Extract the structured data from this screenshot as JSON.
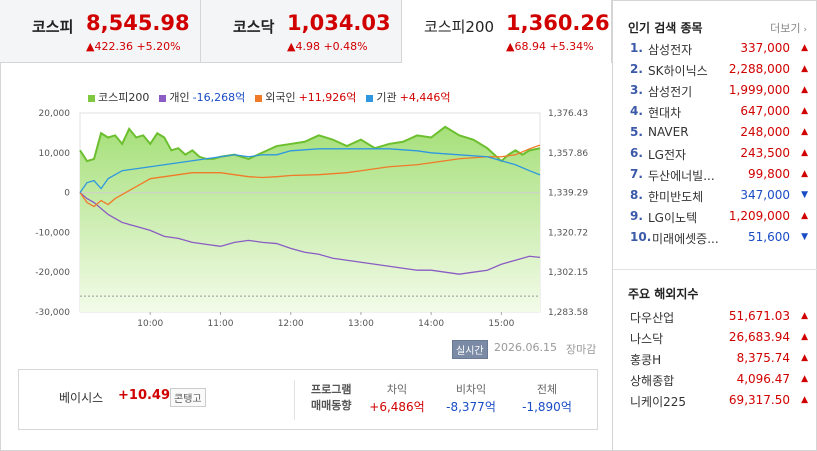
{
  "indices": [
    {
      "name": "코스피",
      "value": "8,545.98",
      "change": "422.36",
      "pct": "+5.20%"
    },
    {
      "name": "코스닥",
      "value": "1,034.03",
      "change": "4.98",
      "pct": "+0.48%"
    },
    {
      "name": "코스피200",
      "value": "1,360.26",
      "change": "68.94",
      "pct": "+5.34%"
    }
  ],
  "legend": [
    {
      "name": "코스피200",
      "value": "",
      "color": "#7fc840"
    },
    {
      "name": "개인",
      "value": "-16,268억",
      "color": "#8a5cc4",
      "vcolor": "#1a4cc6"
    },
    {
      "name": "외국인",
      "value": "+11,926억",
      "color": "#f07a28",
      "vcolor": "#d10000"
    },
    {
      "name": "기관",
      "value": "+4,446억",
      "color": "#2f97e0",
      "vcolor": "#d10000"
    }
  ],
  "chart_data": {
    "type": "line",
    "x_ticks": [
      "10:00",
      "11:00",
      "12:00",
      "13:00",
      "14:00",
      "15:00"
    ],
    "y_left_ticks": [
      "20,000",
      "10,000",
      "0",
      "-10,000",
      "-20,000",
      "-30,000"
    ],
    "y_left_range": [
      -30000,
      20000
    ],
    "y_right_ticks": [
      "1,376.43",
      "1,357.86",
      "1,339.29",
      "1,320.72",
      "1,302.15",
      "1,283.58"
    ],
    "y_right_range": [
      1283.58,
      1376.43
    ],
    "x_range": [
      9.0,
      15.55
    ],
    "series": [
      {
        "name": "코스피200",
        "axis": "right",
        "type": "area",
        "x": [
          9.0,
          9.1,
          9.2,
          9.3,
          9.4,
          9.5,
          9.6,
          9.7,
          9.8,
          9.9,
          10.0,
          10.1,
          10.2,
          10.3,
          10.4,
          10.5,
          10.6,
          10.7,
          10.8,
          10.9,
          11.0,
          11.2,
          11.4,
          11.6,
          11.8,
          12.0,
          12.2,
          12.4,
          12.6,
          12.8,
          13.0,
          13.2,
          13.4,
          13.6,
          13.8,
          14.0,
          14.2,
          14.4,
          14.6,
          14.8,
          15.0,
          15.1,
          15.2,
          15.3,
          15.4,
          15.55
        ],
        "y": [
          1359,
          1354,
          1355,
          1367,
          1365,
          1366,
          1362,
          1369,
          1365,
          1366,
          1362,
          1367,
          1365,
          1359,
          1360,
          1357,
          1359,
          1356,
          1355,
          1355,
          1356,
          1357,
          1355,
          1358,
          1361,
          1362,
          1363,
          1366,
          1364,
          1361,
          1364,
          1360,
          1362,
          1363,
          1366,
          1365,
          1370,
          1366,
          1364,
          1360,
          1354,
          1357,
          1359,
          1357,
          1359,
          1360
        ]
      },
      {
        "name": "개인",
        "axis": "left",
        "x": [
          9.0,
          9.1,
          9.2,
          9.3,
          9.4,
          9.5,
          9.6,
          9.7,
          9.8,
          9.9,
          10.0,
          10.2,
          10.4,
          10.6,
          10.8,
          11.0,
          11.2,
          11.4,
          11.6,
          11.8,
          12.0,
          12.2,
          12.4,
          12.6,
          12.8,
          13.0,
          13.2,
          13.4,
          13.6,
          13.8,
          14.0,
          14.2,
          14.4,
          14.6,
          14.8,
          15.0,
          15.2,
          15.4,
          15.55
        ],
        "y": [
          0,
          -1500,
          -2500,
          -4000,
          -5500,
          -6500,
          -7500,
          -8000,
          -8500,
          -9000,
          -9500,
          -11000,
          -11500,
          -12500,
          -13000,
          -13500,
          -12500,
          -12000,
          -12500,
          -12800,
          -14000,
          -15000,
          -15500,
          -16500,
          -17000,
          -17500,
          -18000,
          -18500,
          -19000,
          -19500,
          -19500,
          -20000,
          -20500,
          -20000,
          -19500,
          -18000,
          -17000,
          -16000,
          -16268
        ]
      },
      {
        "name": "외국인",
        "axis": "left",
        "x": [
          9.0,
          9.1,
          9.2,
          9.3,
          9.4,
          9.5,
          9.7,
          9.9,
          10.0,
          10.2,
          10.4,
          10.6,
          10.8,
          11.0,
          11.2,
          11.4,
          11.6,
          11.8,
          12.0,
          12.4,
          12.8,
          13.0,
          13.4,
          13.8,
          14.0,
          14.4,
          14.8,
          15.0,
          15.2,
          15.4,
          15.55
        ],
        "y": [
          0,
          -2500,
          -3500,
          -2000,
          -3000,
          -1500,
          500,
          2500,
          3500,
          4000,
          4500,
          5000,
          5000,
          5000,
          4500,
          4000,
          3800,
          4000,
          4300,
          4500,
          5000,
          5500,
          6500,
          7000,
          7500,
          8500,
          9000,
          9000,
          9500,
          11000,
          11926
        ]
      },
      {
        "name": "기관",
        "axis": "left",
        "x": [
          9.0,
          9.1,
          9.2,
          9.3,
          9.4,
          9.5,
          9.6,
          9.8,
          10.0,
          10.2,
          10.4,
          10.6,
          10.8,
          11.0,
          11.2,
          11.4,
          11.6,
          11.8,
          12.0,
          12.4,
          12.8,
          13.0,
          13.4,
          13.8,
          14.0,
          14.4,
          14.8,
          15.0,
          15.2,
          15.4,
          15.55
        ],
        "y": [
          0,
          2500,
          3000,
          1000,
          3500,
          4500,
          5500,
          6000,
          6500,
          7000,
          7500,
          8000,
          8500,
          9000,
          9500,
          9000,
          9500,
          9500,
          10500,
          11000,
          11000,
          11000,
          11000,
          10500,
          10000,
          9500,
          9000,
          8000,
          7000,
          5500,
          4446
        ]
      }
    ]
  },
  "chart_controls": {
    "realtime_label": "실시간",
    "date": "2026.06.15",
    "status": "장마감"
  },
  "basis": {
    "label": "베이시스",
    "value": "+10.49",
    "contango_label": "콘탱고"
  },
  "program": {
    "title_line1": "프로그램",
    "title_line2": "매매동향",
    "columns": [
      {
        "header": "차익",
        "value": "+6,486억",
        "dir": "up"
      },
      {
        "header": "비차익",
        "value": "-8,377억",
        "dir": "down"
      },
      {
        "header": "전체",
        "value": "-1,890억",
        "dir": "down"
      }
    ]
  },
  "popular": {
    "title": "인기 검색 종목",
    "more": "더보기",
    "items": [
      {
        "rank": "1.",
        "name": "삼성전자",
        "price": "337,000",
        "dir": "up"
      },
      {
        "rank": "2.",
        "name": "SK하이닉스",
        "price": "2,288,000",
        "dir": "up"
      },
      {
        "rank": "3.",
        "name": "삼성전기",
        "price": "1,999,000",
        "dir": "up"
      },
      {
        "rank": "4.",
        "name": "현대차",
        "price": "647,000",
        "dir": "up"
      },
      {
        "rank": "5.",
        "name": "NAVER",
        "price": "248,000",
        "dir": "up"
      },
      {
        "rank": "6.",
        "name": "LG전자",
        "price": "243,500",
        "dir": "up"
      },
      {
        "rank": "7.",
        "name": "두산에너빌...",
        "price": "99,800",
        "dir": "up"
      },
      {
        "rank": "8.",
        "name": "한미반도체",
        "price": "347,000",
        "dir": "down"
      },
      {
        "rank": "9.",
        "name": "LG이노텍",
        "price": "1,209,000",
        "dir": "up"
      },
      {
        "rank": "10.",
        "name": "미래에셋증...",
        "price": "51,600",
        "dir": "down"
      }
    ]
  },
  "world": {
    "title": "주요 해외지수",
    "items": [
      {
        "name": "다우산업",
        "value": "51,671.03"
      },
      {
        "name": "나스닥",
        "value": "26,683.94"
      },
      {
        "name": "홍콩H",
        "value": "8,375.74"
      },
      {
        "name": "상해종합",
        "value": "4,096.47"
      },
      {
        "name": "니케이225",
        "value": "69,317.50"
      }
    ]
  },
  "colors": {
    "up": "#d10000",
    "down": "#1a4cc6",
    "accent": "#3a59a8"
  }
}
